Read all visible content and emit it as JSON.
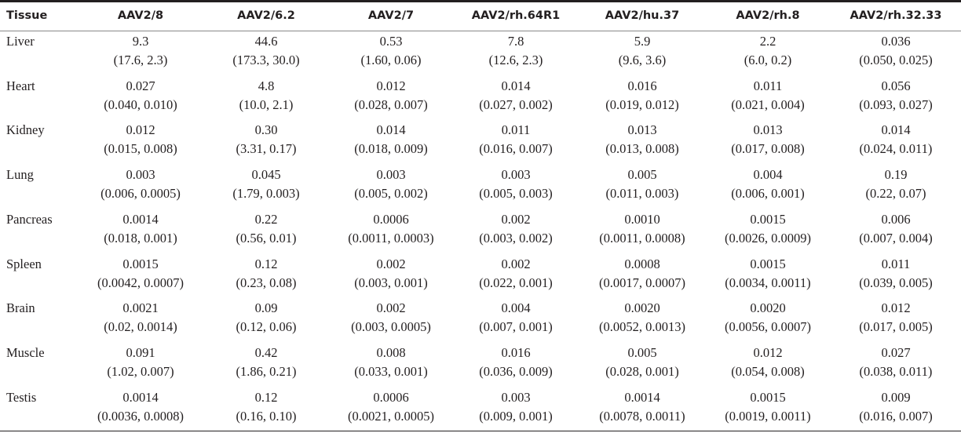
{
  "table": {
    "header": [
      "Tissue",
      "AAV2/8",
      "AAV2/6.2",
      "AAV2/7",
      "AAV2/rh.64R1",
      "AAV2/hu.37",
      "AAV2/rh.8",
      "AAV2/rh.32.33"
    ],
    "rows": [
      {
        "tissue": "Liver",
        "cells": [
          [
            "9.3",
            "(17.6, 2.3)"
          ],
          [
            "44.6",
            "(173.3, 30.0)"
          ],
          [
            "0.53",
            "(1.60, 0.06)"
          ],
          [
            "7.8",
            "(12.6, 2.3)"
          ],
          [
            "5.9",
            "(9.6, 3.6)"
          ],
          [
            "2.2",
            "(6.0, 0.2)"
          ],
          [
            "0.036",
            "(0.050, 0.025)"
          ]
        ]
      },
      {
        "tissue": "Heart",
        "cells": [
          [
            "0.027",
            "(0.040, 0.010)"
          ],
          [
            "4.8",
            "(10.0, 2.1)"
          ],
          [
            "0.012",
            "(0.028, 0.007)"
          ],
          [
            "0.014",
            "(0.027, 0.002)"
          ],
          [
            "0.016",
            "(0.019, 0.012)"
          ],
          [
            "0.011",
            "(0.021, 0.004)"
          ],
          [
            "0.056",
            "(0.093, 0.027)"
          ]
        ]
      },
      {
        "tissue": "Kidney",
        "cells": [
          [
            "0.012",
            "(0.015, 0.008)"
          ],
          [
            "0.30",
            "(3.31, 0.17)"
          ],
          [
            "0.014",
            "(0.018, 0.009)"
          ],
          [
            "0.011",
            "(0.016, 0.007)"
          ],
          [
            "0.013",
            "(0.013, 0.008)"
          ],
          [
            "0.013",
            "(0.017, 0.008)"
          ],
          [
            "0.014",
            "(0.024, 0.011)"
          ]
        ]
      },
      {
        "tissue": "Lung",
        "cells": [
          [
            "0.003",
            "(0.006, 0.0005)"
          ],
          [
            "0.045",
            "(1.79, 0.003)"
          ],
          [
            "0.003",
            "(0.005, 0.002)"
          ],
          [
            "0.003",
            "(0.005, 0.003)"
          ],
          [
            "0.005",
            "(0.011, 0.003)"
          ],
          [
            "0.004",
            "(0.006, 0.001)"
          ],
          [
            "0.19",
            "(0.22, 0.07)"
          ]
        ]
      },
      {
        "tissue": "Pancreas",
        "cells": [
          [
            "0.0014",
            "(0.018, 0.001)"
          ],
          [
            "0.22",
            "(0.56, 0.01)"
          ],
          [
            "0.0006",
            "(0.0011, 0.0003)"
          ],
          [
            "0.002",
            "(0.003, 0.002)"
          ],
          [
            "0.0010",
            "(0.0011, 0.0008)"
          ],
          [
            "0.0015",
            "(0.0026, 0.0009)"
          ],
          [
            "0.006",
            "(0.007, 0.004)"
          ]
        ]
      },
      {
        "tissue": "Spleen",
        "cells": [
          [
            "0.0015",
            "(0.0042, 0.0007)"
          ],
          [
            "0.12",
            "(0.23, 0.08)"
          ],
          [
            "0.002",
            "(0.003, 0.001)"
          ],
          [
            "0.002",
            "(0.022, 0.001)"
          ],
          [
            "0.0008",
            "(0.0017, 0.0007)"
          ],
          [
            "0.0015",
            "(0.0034, 0.0011)"
          ],
          [
            "0.011",
            "(0.039, 0.005)"
          ]
        ]
      },
      {
        "tissue": "Brain",
        "cells": [
          [
            "0.0021",
            "(0.02, 0.0014)"
          ],
          [
            "0.09",
            "(0.12, 0.06)"
          ],
          [
            "0.002",
            "(0.003, 0.0005)"
          ],
          [
            "0.004",
            "(0.007, 0.001)"
          ],
          [
            "0.0020",
            "(0.0052, 0.0013)"
          ],
          [
            "0.0020",
            "(0.0056, 0.0007)"
          ],
          [
            "0.012",
            "(0.017, 0.005)"
          ]
        ]
      },
      {
        "tissue": "Muscle",
        "cells": [
          [
            "0.091",
            "(1.02, 0.007)"
          ],
          [
            "0.42",
            "(1.86, 0.21)"
          ],
          [
            "0.008",
            "(0.033, 0.001)"
          ],
          [
            "0.016",
            "(0.036, 0.009)"
          ],
          [
            "0.005",
            "(0.028, 0.001)"
          ],
          [
            "0.012",
            "(0.054, 0.008)"
          ],
          [
            "0.027",
            "(0.038, 0.011)"
          ]
        ]
      },
      {
        "tissue": "Testis",
        "cells": [
          [
            "0.0014",
            "(0.0036, 0.0008)"
          ],
          [
            "0.12",
            "(0.16, 0.10)"
          ],
          [
            "0.0006",
            "(0.0021, 0.0005)"
          ],
          [
            "0.003",
            "(0.009, 0.001)"
          ],
          [
            "0.0014",
            "(0.0078, 0.0011)"
          ],
          [
            "0.0015",
            "(0.0019, 0.0011)"
          ],
          [
            "0.009",
            "(0.016, 0.007)"
          ]
        ]
      }
    ]
  }
}
